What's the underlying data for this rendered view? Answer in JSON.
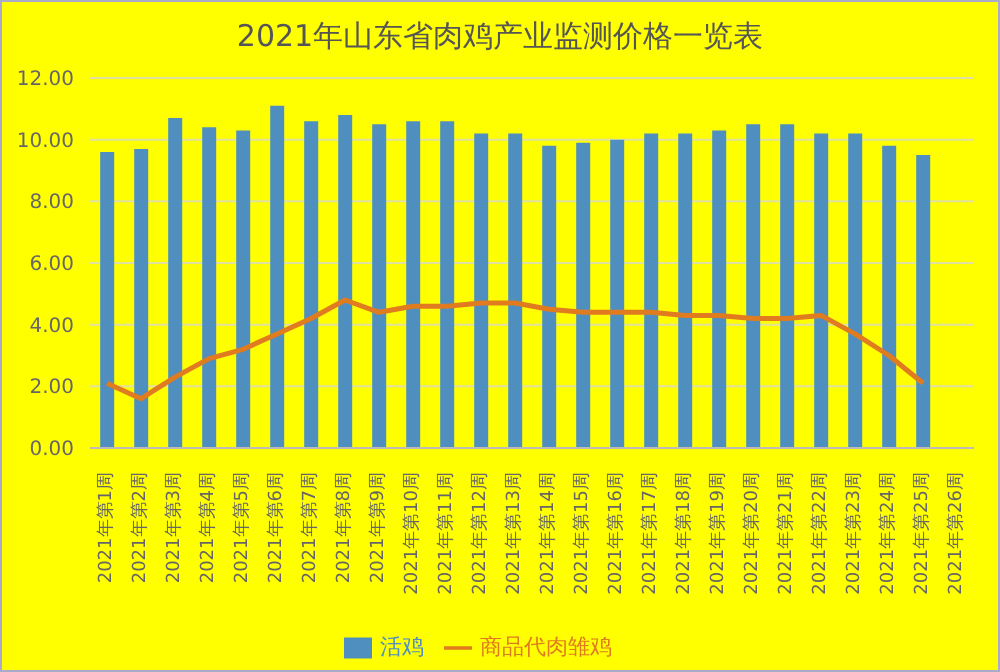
{
  "chart_data": {
    "type": "bar",
    "title": "2021年山东省肉鸡产业监测价格一览表",
    "categories": [
      "2021年第1周",
      "2021年第2周",
      "2021年第3周",
      "2021年第4周",
      "2021年第5周",
      "2021年第6周",
      "2021年第7周",
      "2021年第8周",
      "2021年第9周",
      "2021年第10周",
      "2021年第11周",
      "2021年第12周",
      "2021年第13周",
      "2021年第14周",
      "2021年第15周",
      "2021年第16周",
      "2021年第17周",
      "2021年第18周",
      "2021年第19周",
      "2021年第20周",
      "2021年第21周",
      "2021年第22周",
      "2021年第23周",
      "2021年第24周",
      "2021年第25周",
      "2021年第26周"
    ],
    "series": [
      {
        "name": "活鸡",
        "color": "#4f8fc0",
        "values": [
          9.6,
          9.7,
          10.7,
          10.4,
          10.3,
          11.1,
          10.6,
          10.8,
          10.5,
          10.6,
          10.6,
          10.2,
          10.2,
          9.8,
          9.9,
          10.0,
          10.2,
          10.2,
          10.3,
          10.5,
          10.5,
          10.2,
          10.2,
          9.8,
          9.5,
          null
        ]
      },
      {
        "name": "商品代肉雏鸡",
        "type": "line",
        "color": "#e07b20",
        "values": [
          2.1,
          1.6,
          2.3,
          2.9,
          3.2,
          3.7,
          4.2,
          4.8,
          4.4,
          4.6,
          4.6,
          4.7,
          4.7,
          4.5,
          4.4,
          4.4,
          4.4,
          4.3,
          4.3,
          4.2,
          4.2,
          4.3,
          3.7,
          3.0,
          2.1,
          null
        ]
      }
    ],
    "ylim": [
      0,
      12
    ],
    "yticks": [
      {
        "value": 0,
        "label": "0.00"
      },
      {
        "value": 2,
        "label": "2.00"
      },
      {
        "value": 4,
        "label": "4.00"
      },
      {
        "value": 6,
        "label": "6.00"
      },
      {
        "value": 8,
        "label": "8.00"
      },
      {
        "value": 10,
        "label": "10.00"
      },
      {
        "value": 12,
        "label": "12.00"
      }
    ],
    "grid": "y",
    "legend": "bottom",
    "marker": "none"
  }
}
